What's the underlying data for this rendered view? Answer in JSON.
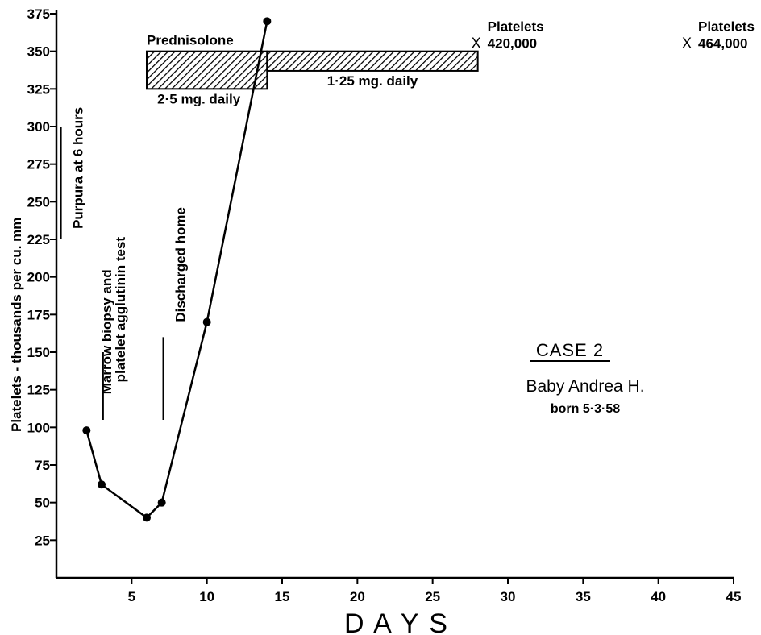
{
  "chart_data": {
    "type": "line",
    "title": "CASE 2",
    "subtitle_lines": [
      "Baby Andrea H.",
      "born 5·3·58"
    ],
    "xlabel": "D A Y S",
    "ylabel": "Platelets - thousands per cu. mm",
    "xlim": [
      0,
      45
    ],
    "ylim": [
      0,
      375
    ],
    "xticks": [
      5,
      10,
      15,
      20,
      25,
      30,
      35,
      40,
      45
    ],
    "yticks": [
      25,
      50,
      75,
      100,
      125,
      150,
      175,
      200,
      225,
      250,
      275,
      300,
      325,
      350,
      375
    ],
    "grid": false,
    "series": [
      {
        "x": [
          2,
          3,
          6,
          7,
          10,
          14
        ],
        "y": [
          98,
          62,
          40,
          50,
          170,
          370
        ]
      }
    ],
    "extra_points": [
      {
        "x": 28,
        "y": 364,
        "marker": "X",
        "label_line1": "Platelets",
        "label_line2": "420,000"
      },
      {
        "x": 42,
        "y": 364,
        "marker": "X",
        "label_line1": "Platelets",
        "label_line2": "464,000"
      }
    ],
    "treatment_bars": [
      {
        "label": "Prednisolone",
        "dose": "2·5 mg. daily",
        "x_start": 6,
        "x_end": 14,
        "y_bottom": 325,
        "y_top": 350
      },
      {
        "dose": "1·25 mg. daily",
        "x_start": 14,
        "x_end": 28,
        "y_bottom": 337,
        "y_top": 350
      }
    ],
    "vertical_annotations": [
      {
        "text": "Purpura at 6 hours",
        "x": 0.3,
        "line_y": [
          225,
          300
        ],
        "text_y_start": 232
      },
      {
        "text": "Marrow biopsy and",
        "x": 2.2,
        "line_y": [
          0,
          0
        ],
        "text_y_start": 122
      },
      {
        "text": "platelet agglutinin test",
        "x": 3.1,
        "line_y": [
          105,
          150
        ],
        "text_y_start": 130
      },
      {
        "text": "Discharged home",
        "x": 7.1,
        "line_y": [
          105,
          160
        ],
        "text_y_start": 170
      }
    ]
  }
}
